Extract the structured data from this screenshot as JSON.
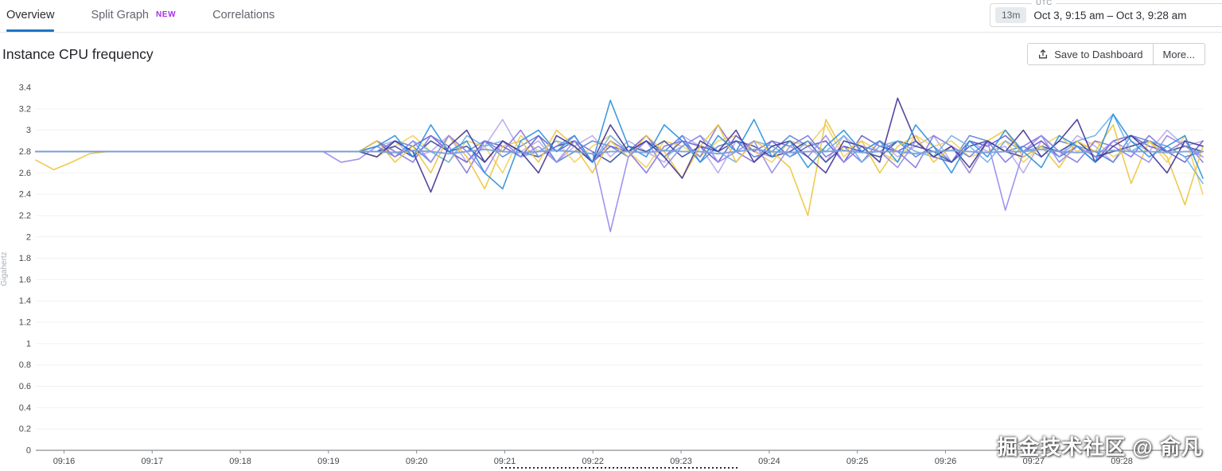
{
  "tabs": [
    {
      "label": "Overview",
      "active": true
    },
    {
      "label": "Split Graph",
      "badge": "NEW",
      "active": false
    },
    {
      "label": "Correlations",
      "active": false
    }
  ],
  "time_picker": {
    "duration": "13m",
    "timezone": "UTC",
    "range": "Oct 3, 9:15 am – Oct 3, 9:28 am"
  },
  "toolbar": {
    "title": "Instance CPU frequency",
    "save_label": "Save to Dashboard",
    "more_label": "More..."
  },
  "watermark": "掘金技术社区 @ 俞凡",
  "colors": {
    "active_tab_underline": "#1d76c6",
    "new_badge": "#a82ce8",
    "axis": "#8a8d91",
    "gridline": "#f1f1f2",
    "tick_label": "#45484d"
  },
  "chart_data": {
    "type": "line",
    "title": "Instance CPU frequency",
    "xlabel": "",
    "ylabel": "Gigahertz",
    "ylim": [
      0,
      3.4
    ],
    "y_tick_step": 0.2,
    "grid": true,
    "legend": false,
    "x_axis_start_min": 15.68,
    "x_axis_end_min": 28.92,
    "x_tick_labels": [
      "09:16",
      "09:17",
      "09:18",
      "09:19",
      "09:20",
      "09:21",
      "09:22",
      "09:23",
      "09:24",
      "09:25",
      "09:26",
      "09:27",
      "09:28"
    ],
    "dotted_marker": {
      "x_from_min": 20.96,
      "x_to_min": 23.65
    },
    "series": [
      {
        "name": "s-lavender",
        "color": "#b7aaee",
        "values": [
          2.8,
          2.8,
          2.8,
          2.8,
          2.8,
          2.8,
          2.8,
          2.8,
          2.8,
          2.8,
          2.8,
          2.8,
          2.8,
          2.8,
          2.8,
          2.8,
          2.8,
          2.8,
          2.8,
          2.85,
          2.9,
          2.75,
          2.8,
          2.95,
          2.7,
          2.85,
          3.1,
          2.8,
          2.9,
          2.7,
          2.85,
          2.95,
          2.75,
          2.9,
          2.8,
          2.7,
          2.95,
          2.85,
          2.6,
          2.9,
          2.8,
          2.75,
          2.9,
          2.85,
          2.7,
          2.95,
          2.8,
          2.9,
          2.75,
          2.85,
          2.95,
          2.7,
          2.9,
          2.8,
          2.85,
          2.6,
          2.9,
          2.75,
          2.95,
          2.85,
          2.7,
          2.9,
          2.8,
          3.0,
          2.85,
          2.9
        ]
      },
      {
        "name": "s-mediumblue",
        "color": "#5d86d8",
        "values": [
          2.8,
          2.8,
          2.8,
          2.8,
          2.8,
          2.8,
          2.8,
          2.8,
          2.8,
          2.8,
          2.8,
          2.8,
          2.8,
          2.8,
          2.8,
          2.8,
          2.8,
          2.8,
          2.8,
          2.8,
          2.9,
          2.85,
          2.7,
          2.95,
          2.8,
          2.9,
          2.75,
          2.85,
          2.95,
          2.7,
          2.8,
          2.9,
          2.85,
          2.75,
          2.9,
          2.8,
          2.95,
          2.7,
          2.85,
          2.9,
          2.75,
          2.8,
          2.95,
          2.85,
          2.9,
          2.7,
          2.85,
          2.8,
          2.9,
          2.75,
          2.85,
          2.7,
          2.95,
          2.9,
          2.8,
          2.85,
          2.75,
          2.9,
          2.85,
          2.8,
          2.7,
          2.95,
          2.9,
          2.85,
          2.75,
          2.8
        ]
      },
      {
        "name": "s-gold2",
        "color": "#f3cf5e",
        "values": [
          2.8,
          2.8,
          2.8,
          2.8,
          2.8,
          2.8,
          2.8,
          2.8,
          2.8,
          2.8,
          2.8,
          2.8,
          2.8,
          2.8,
          2.8,
          2.8,
          2.8,
          2.8,
          2.8,
          2.75,
          2.85,
          2.95,
          2.8,
          2.7,
          2.9,
          2.85,
          2.6,
          2.95,
          2.8,
          2.9,
          2.7,
          2.85,
          2.95,
          2.8,
          2.65,
          2.9,
          2.85,
          2.75,
          2.9,
          2.95,
          2.8,
          2.7,
          2.9,
          2.85,
          3.05,
          2.75,
          2.9,
          2.8,
          2.7,
          2.95,
          2.85,
          2.9,
          2.75,
          2.8,
          2.9,
          2.7,
          2.85,
          2.95,
          2.8,
          2.9,
          2.75,
          2.85,
          2.9,
          2.7,
          2.95,
          2.4
        ]
      },
      {
        "name": "s-violet",
        "color": "#6d5ecf",
        "values": [
          2.8,
          2.8,
          2.8,
          2.8,
          2.8,
          2.8,
          2.8,
          2.8,
          2.8,
          2.8,
          2.8,
          2.8,
          2.8,
          2.8,
          2.8,
          2.8,
          2.8,
          2.8,
          2.8,
          2.9,
          2.75,
          2.85,
          2.95,
          2.8,
          2.7,
          2.9,
          2.85,
          2.75,
          2.95,
          2.8,
          2.9,
          2.7,
          2.85,
          2.8,
          2.95,
          2.75,
          2.9,
          2.85,
          2.7,
          2.95,
          2.8,
          2.9,
          2.75,
          2.85,
          2.9,
          2.7,
          2.95,
          2.85,
          2.8,
          2.9,
          2.75,
          2.7,
          2.9,
          2.85,
          2.95,
          2.8,
          2.9,
          2.75,
          2.85,
          2.7,
          2.9,
          2.95,
          2.85,
          2.8,
          2.7,
          2.9
        ]
      },
      {
        "name": "s-navy",
        "color": "#3d4e9e",
        "values": [
          2.8,
          2.8,
          2.8,
          2.8,
          2.8,
          2.8,
          2.8,
          2.8,
          2.8,
          2.8,
          2.8,
          2.8,
          2.8,
          2.8,
          2.8,
          2.8,
          2.8,
          2.8,
          2.8,
          2.8,
          2.85,
          2.75,
          2.9,
          2.8,
          2.85,
          2.7,
          2.9,
          2.8,
          2.75,
          2.85,
          2.9,
          2.8,
          2.7,
          2.85,
          2.8,
          2.9,
          2.75,
          2.85,
          2.8,
          2.9,
          2.85,
          2.75,
          2.8,
          2.9,
          2.7,
          2.85,
          2.8,
          2.75,
          2.9,
          2.85,
          2.8,
          2.7,
          2.85,
          2.9,
          2.8,
          2.75,
          2.85,
          2.8,
          2.9,
          2.75,
          2.8,
          2.85,
          2.9,
          2.8,
          2.85,
          2.8
        ]
      },
      {
        "name": "s-mediumpurple",
        "color": "#8377dd",
        "values": [
          2.8,
          2.8,
          2.8,
          2.8,
          2.8,
          2.8,
          2.8,
          2.8,
          2.8,
          2.8,
          2.8,
          2.8,
          2.8,
          2.8,
          2.8,
          2.8,
          2.8,
          2.8,
          2.8,
          2.9,
          2.8,
          2.7,
          2.95,
          2.85,
          2.6,
          2.9,
          2.8,
          3.0,
          2.75,
          2.85,
          2.95,
          2.7,
          2.9,
          2.8,
          2.6,
          2.85,
          2.9,
          2.75,
          3.05,
          2.8,
          2.7,
          2.9,
          2.85,
          2.95,
          2.75,
          2.85,
          2.7,
          2.9,
          2.8,
          2.65,
          2.95,
          2.85,
          2.75,
          2.9,
          2.7,
          2.85,
          2.95,
          2.8,
          2.7,
          2.9,
          2.85,
          2.75,
          2.95,
          2.8,
          2.9,
          2.7
        ]
      },
      {
        "name": "s-sky",
        "color": "#6fb1e8",
        "values": [
          2.8,
          2.8,
          2.8,
          2.8,
          2.8,
          2.8,
          2.8,
          2.8,
          2.8,
          2.8,
          2.8,
          2.8,
          2.8,
          2.8,
          2.8,
          2.8,
          2.8,
          2.8,
          2.8,
          2.85,
          2.75,
          2.9,
          2.8,
          2.7,
          2.95,
          2.85,
          2.9,
          2.75,
          2.8,
          2.9,
          2.85,
          2.7,
          2.95,
          2.8,
          2.9,
          2.75,
          2.85,
          2.95,
          2.8,
          2.7,
          2.9,
          2.85,
          2.75,
          2.9,
          2.8,
          2.95,
          2.7,
          2.85,
          2.9,
          2.8,
          2.75,
          2.95,
          2.85,
          2.7,
          2.9,
          2.8,
          2.85,
          2.75,
          2.9,
          2.95,
          3.15,
          2.8,
          2.9,
          2.85,
          2.75,
          2.5
        ]
      },
      {
        "name": "s-gold",
        "color": "#eec53f",
        "values": [
          2.72,
          2.63,
          2.7,
          2.78,
          2.8,
          2.8,
          2.8,
          2.8,
          2.8,
          2.8,
          2.8,
          2.8,
          2.8,
          2.8,
          2.8,
          2.8,
          2.8,
          2.8,
          2.8,
          2.9,
          2.7,
          2.85,
          2.6,
          2.95,
          2.75,
          2.45,
          2.85,
          2.9,
          2.7,
          3.0,
          2.85,
          2.6,
          2.9,
          2.75,
          2.95,
          2.8,
          2.55,
          2.85,
          3.05,
          2.7,
          2.9,
          2.8,
          2.65,
          2.2,
          3.1,
          2.8,
          2.9,
          2.6,
          2.85,
          2.95,
          2.7,
          2.85,
          2.6,
          2.9,
          3.0,
          2.75,
          2.85,
          2.65,
          2.9,
          2.8,
          3.05,
          2.5,
          2.9,
          2.75,
          2.3,
          2.85
        ]
      },
      {
        "name": "s-periwinkle",
        "color": "#978bee",
        "values": [
          2.8,
          2.8,
          2.8,
          2.8,
          2.8,
          2.8,
          2.8,
          2.8,
          2.8,
          2.8,
          2.8,
          2.8,
          2.8,
          2.8,
          2.8,
          2.8,
          2.8,
          2.7,
          2.73,
          2.85,
          2.75,
          2.9,
          2.7,
          2.95,
          2.8,
          2.6,
          2.9,
          2.75,
          2.85,
          2.7,
          2.9,
          2.8,
          2.05,
          2.75,
          2.9,
          2.65,
          2.85,
          2.95,
          2.7,
          2.8,
          2.9,
          2.6,
          2.85,
          2.75,
          2.95,
          2.7,
          2.85,
          2.8,
          2.65,
          2.9,
          2.75,
          2.85,
          2.6,
          2.9,
          2.25,
          2.8,
          2.95,
          2.7,
          2.85,
          2.75,
          2.9,
          2.8,
          2.7,
          2.95,
          2.85,
          2.75
        ]
      },
      {
        "name": "s-darkindigo",
        "color": "#453796",
        "values": [
          2.8,
          2.8,
          2.8,
          2.8,
          2.8,
          2.8,
          2.8,
          2.8,
          2.8,
          2.8,
          2.8,
          2.8,
          2.8,
          2.8,
          2.8,
          2.8,
          2.8,
          2.8,
          2.8,
          2.75,
          2.9,
          2.8,
          2.42,
          2.85,
          3.0,
          2.7,
          2.9,
          2.8,
          2.6,
          2.95,
          2.85,
          2.7,
          3.05,
          2.8,
          2.9,
          2.75,
          2.55,
          2.9,
          2.8,
          3.0,
          2.7,
          2.85,
          2.9,
          2.75,
          2.6,
          2.9,
          2.85,
          2.7,
          3.3,
          2.9,
          2.75,
          2.85,
          2.65,
          2.9,
          2.8,
          3.0,
          2.75,
          2.9,
          3.1,
          2.7,
          2.85,
          2.95,
          2.8,
          2.6,
          2.9,
          2.85
        ]
      },
      {
        "name": "s-azure",
        "color": "#2f93dc",
        "values": [
          2.8,
          2.8,
          2.8,
          2.8,
          2.8,
          2.8,
          2.8,
          2.8,
          2.8,
          2.8,
          2.8,
          2.8,
          2.8,
          2.8,
          2.8,
          2.8,
          2.8,
          2.8,
          2.8,
          2.85,
          2.95,
          2.75,
          3.05,
          2.8,
          2.9,
          2.6,
          2.45,
          2.9,
          3.0,
          2.8,
          2.95,
          2.7,
          3.28,
          2.85,
          2.75,
          3.05,
          2.9,
          2.7,
          2.95,
          2.8,
          3.1,
          2.75,
          2.9,
          2.65,
          2.85,
          3.0,
          2.8,
          2.9,
          2.7,
          3.05,
          2.85,
          2.6,
          2.9,
          2.75,
          3.0,
          2.8,
          2.65,
          2.95,
          2.85,
          2.7,
          3.15,
          2.9,
          2.75,
          2.85,
          2.95,
          2.55
        ]
      },
      {
        "name": "s-steelblue",
        "color": "#7ba1d7",
        "values": [
          2.8,
          2.8,
          2.8,
          2.8,
          2.8,
          2.8,
          2.8,
          2.8,
          2.8,
          2.8,
          2.8,
          2.8,
          2.8,
          2.8,
          2.8,
          2.8,
          2.8,
          2.8,
          2.8,
          2.8,
          2.79,
          2.81,
          2.8,
          2.78,
          2.8,
          2.82,
          2.8,
          2.79,
          2.8,
          2.81,
          2.8,
          2.78,
          2.8,
          2.8,
          2.79,
          2.81,
          2.8,
          2.8,
          2.78,
          2.8,
          2.82,
          2.8,
          2.79,
          2.8,
          2.8,
          2.81,
          2.79,
          2.8,
          2.8,
          2.78,
          2.8,
          2.81,
          2.8,
          2.79,
          2.8,
          2.8,
          2.82,
          2.8,
          2.79,
          2.8,
          2.81,
          2.8,
          2.8,
          2.79,
          2.8,
          2.8
        ]
      }
    ]
  }
}
